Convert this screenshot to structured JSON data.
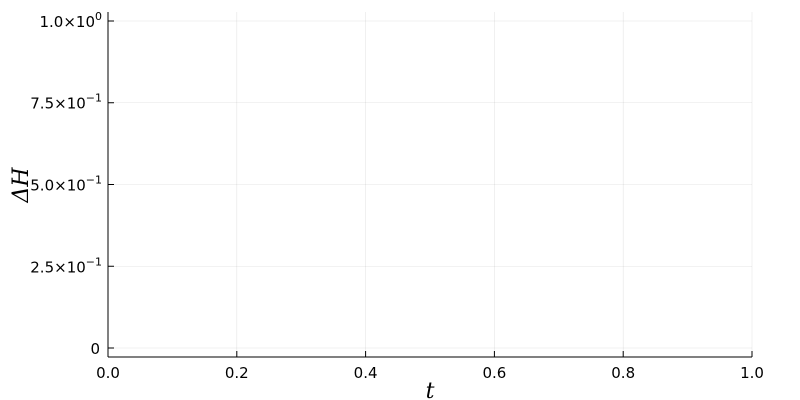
{
  "chart_data": {
    "type": "line",
    "title": "",
    "xlabel": "t",
    "ylabel": "ΔH",
    "xlim": [
      0,
      1
    ],
    "ylim": [
      -0.0275,
      1.0275
    ],
    "x_ticks": [
      0,
      0.2,
      0.4,
      0.6,
      0.8,
      1.0
    ],
    "x_tick_labels": [
      "0.0",
      "0.2",
      "0.4",
      "0.6",
      "0.8",
      "1.0"
    ],
    "y_ticks": [
      0,
      0.25,
      0.5,
      0.75,
      1.0
    ],
    "y_tick_labels": [
      {
        "mantissa": "0",
        "exp": ""
      },
      {
        "mantissa": "2.5×10",
        "exp": "−1"
      },
      {
        "mantissa": "5.0×10",
        "exp": "−1"
      },
      {
        "mantissa": "7.5×10",
        "exp": "−1"
      },
      {
        "mantissa": "1.0×10",
        "exp": "0"
      }
    ],
    "grid": true,
    "series": []
  }
}
